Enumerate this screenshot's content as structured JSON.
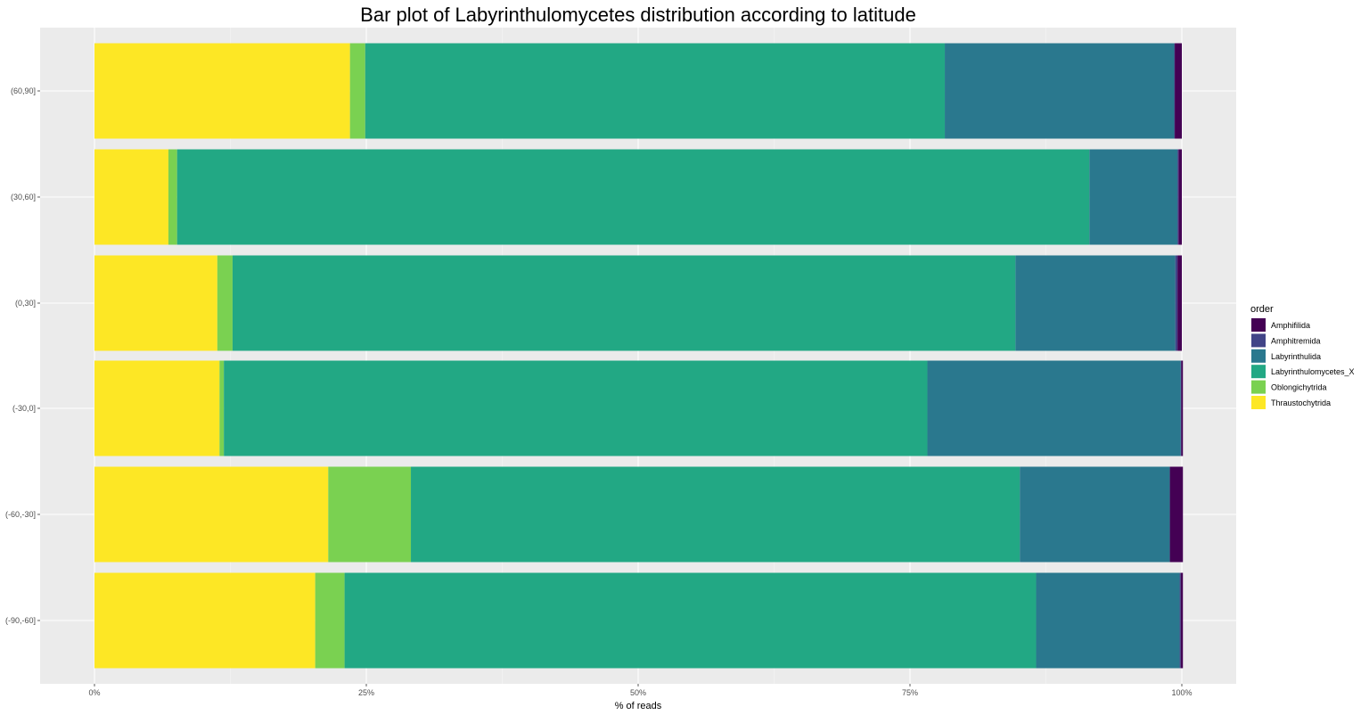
{
  "chart_data": {
    "type": "bar",
    "orientation": "horizontal",
    "stacked": true,
    "title": "Bar plot of Labyrinthulomycetes distribution according to latitude",
    "xlabel": "% of reads",
    "ylabel": "",
    "xlim": [
      0,
      100
    ],
    "x_ticks": [
      "0%",
      "25%",
      "50%",
      "75%",
      "100%"
    ],
    "grid": true,
    "legend_position": "right",
    "legend_title": "order",
    "categories": [
      "(60,90]",
      "(30,60]",
      "(0,30]",
      "(-30,0]",
      "(-60,-30]",
      "(-90,-60]"
    ],
    "series": [
      {
        "name": "Thraustochytrida",
        "color": "#FDE725",
        "values": [
          23.5,
          6.8,
          11.3,
          11.5,
          21.5,
          20.3
        ]
      },
      {
        "name": "Oblongichytrida",
        "color": "#7AD151",
        "values": [
          1.4,
          0.8,
          1.4,
          0.4,
          7.6,
          2.7
        ]
      },
      {
        "name": "Labyrinthulomycetes_X",
        "color": "#22A884",
        "values": [
          53.3,
          83.9,
          72.0,
          64.7,
          56.0,
          63.6
        ]
      },
      {
        "name": "Labyrinthulida",
        "color": "#2A788E",
        "values": [
          21.1,
          8.1,
          14.7,
          23.3,
          13.8,
          13.2
        ]
      },
      {
        "name": "Amphitremida",
        "color": "#414487",
        "values": [
          0.05,
          0.1,
          0.2,
          0.05,
          0.0,
          0.1
        ]
      },
      {
        "name": "Amphifilida",
        "color": "#440154",
        "values": [
          0.65,
          0.3,
          0.4,
          0.15,
          1.2,
          0.2
        ]
      }
    ],
    "legend_order": [
      "Amphifilida",
      "Amphitremida",
      "Labyrinthulida",
      "Labyrinthulomycetes_X",
      "Oblongichytrida",
      "Thraustochytrida"
    ]
  }
}
